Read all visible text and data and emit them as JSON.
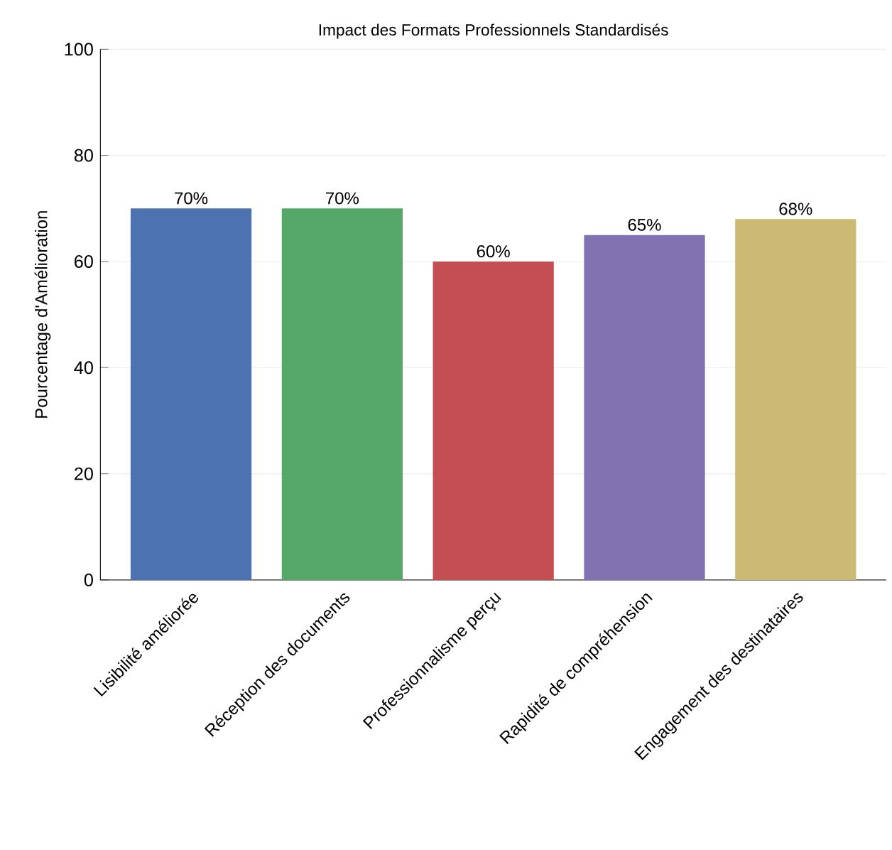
{
  "chart_data": {
    "type": "bar",
    "title": "Impact des Formats Professionnels Standardisés",
    "ylabel": "Pourcentage d'Amélioration",
    "categories": [
      "Lisibilité améliorée",
      "Réception des documents",
      "Professionnalisme perçu",
      "Rapidité de compréhension",
      "Engagement des destinataires"
    ],
    "values": [
      70,
      70,
      60,
      65,
      68
    ],
    "value_labels": [
      "70%",
      "70%",
      "60%",
      "65%",
      "68%"
    ],
    "colors": [
      "#4c72b0",
      "#55a868",
      "#c44e52",
      "#8172b2",
      "#ccb974"
    ],
    "ylim": [
      0,
      100
    ],
    "yticks": [
      0,
      20,
      40,
      60,
      80,
      100
    ],
    "grid": "y"
  }
}
